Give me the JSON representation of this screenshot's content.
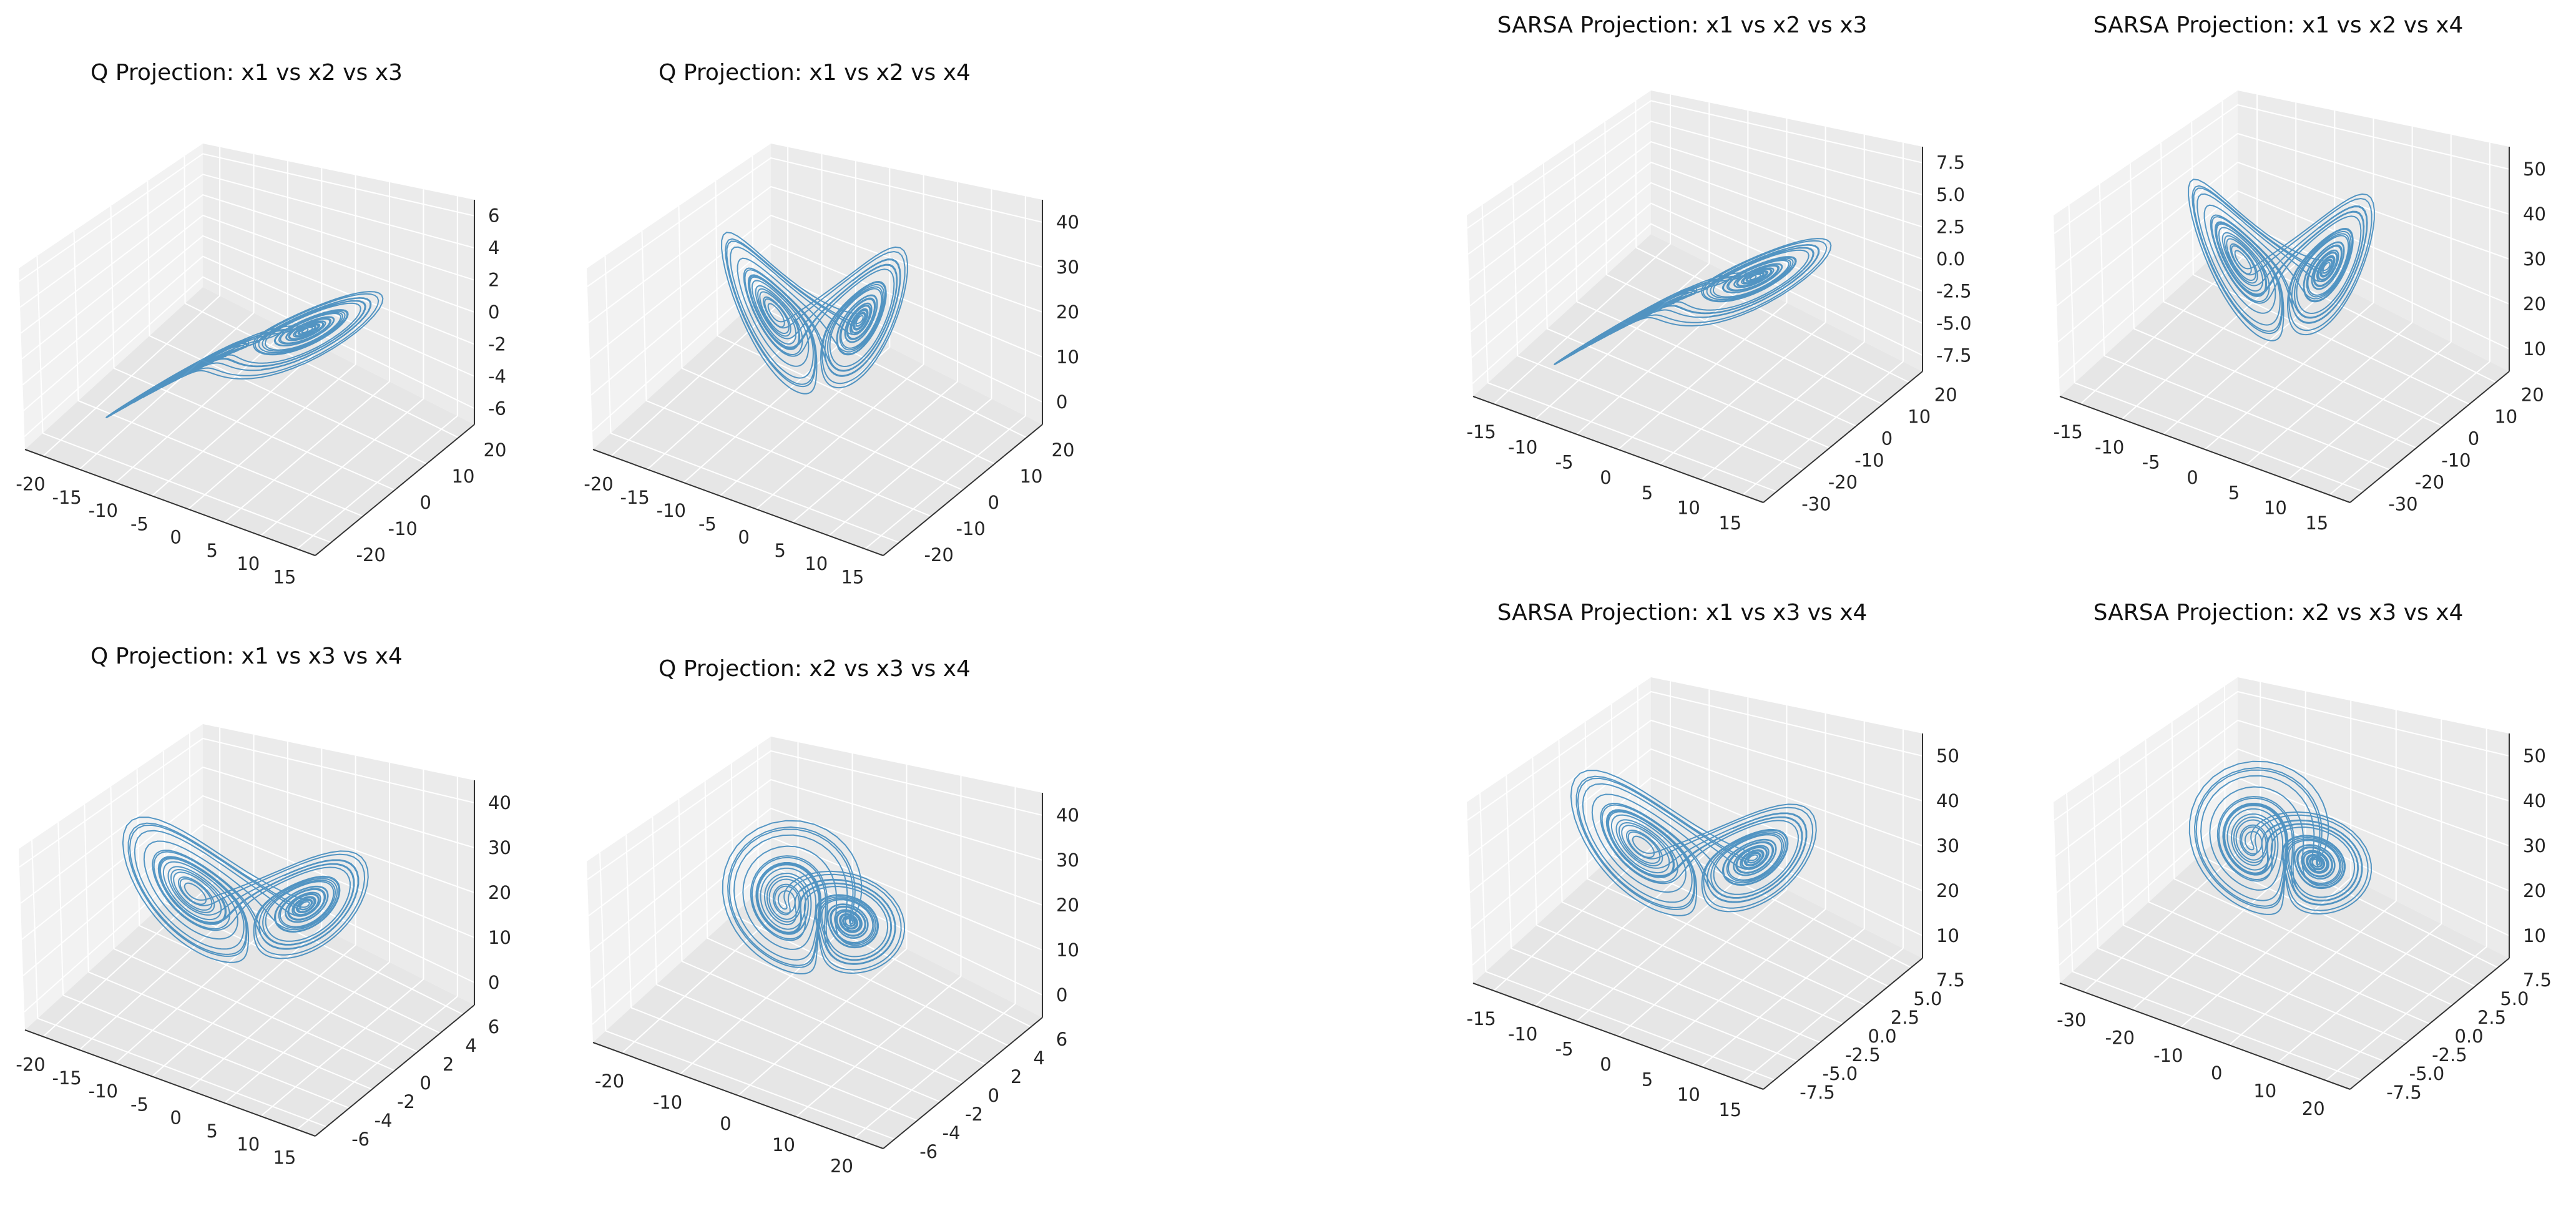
{
  "chart_data": [
    {
      "type": "line3d",
      "title": "Q Projection: x1 vs x2 vs x3",
      "series_color": "#1f77b4",
      "xaxis": {
        "ticks": [
          "-20",
          "-15",
          "-10",
          "-5",
          "0",
          "5",
          "10",
          "15"
        ]
      },
      "yaxis": {
        "ticks": [
          "-20",
          "-10",
          "0",
          "10",
          "20"
        ]
      },
      "zaxis": {
        "ticks": [
          "-6",
          "-4",
          "-2",
          "0",
          "2",
          "4",
          "6"
        ]
      },
      "zvars": [
        "x1",
        "x2",
        "x3"
      ]
    },
    {
      "type": "line3d",
      "title": "Q Projection: x1 vs x2 vs x4",
      "series_color": "#1f77b4",
      "xaxis": {
        "ticks": [
          "-20",
          "-15",
          "-10",
          "-5",
          "0",
          "5",
          "10",
          "15"
        ]
      },
      "yaxis": {
        "ticks": [
          "-20",
          "-10",
          "0",
          "10",
          "20"
        ]
      },
      "zaxis": {
        "ticks": [
          "0",
          "10",
          "20",
          "30",
          "40"
        ]
      },
      "zvars": [
        "x1",
        "x2",
        "x4"
      ]
    },
    {
      "type": "line3d",
      "title": "Q Projection: x1 vs x3 vs x4",
      "series_color": "#1f77b4",
      "xaxis": {
        "ticks": [
          "-20",
          "-15",
          "-10",
          "-5",
          "0",
          "5",
          "10",
          "15"
        ]
      },
      "yaxis": {
        "ticks": [
          "-6",
          "-4",
          "-2",
          "0",
          "2",
          "4",
          "6"
        ]
      },
      "zaxis": {
        "ticks": [
          "0",
          "10",
          "20",
          "30",
          "40"
        ]
      },
      "zvars": [
        "x1",
        "x3",
        "x4"
      ]
    },
    {
      "type": "line3d",
      "title": "Q Projection: x2 vs x3 vs x4",
      "series_color": "#1f77b4",
      "xaxis": {
        "ticks": [
          "-20",
          "-10",
          "0",
          "10",
          "20"
        ]
      },
      "yaxis": {
        "ticks": [
          "-6",
          "-4",
          "-2",
          "0",
          "2",
          "4",
          "6"
        ]
      },
      "zaxis": {
        "ticks": [
          "0",
          "10",
          "20",
          "30",
          "40"
        ]
      },
      "zvars": [
        "x2",
        "x3",
        "x4"
      ]
    },
    {
      "type": "line3d",
      "title": "SARSA Projection: x1 vs x2 vs x3",
      "series_color": "#1f77b4",
      "xaxis": {
        "ticks": [
          "-15",
          "-10",
          "-5",
          "0",
          "5",
          "10",
          "15"
        ]
      },
      "yaxis": {
        "ticks": [
          "-30",
          "-20",
          "-10",
          "0",
          "10",
          "20"
        ]
      },
      "zaxis": {
        "ticks": [
          "-7.5",
          "-5.0",
          "-2.5",
          "0.0",
          "2.5",
          "5.0",
          "7.5"
        ]
      },
      "zvars": [
        "x1",
        "x2",
        "x3"
      ]
    },
    {
      "type": "line3d",
      "title": "SARSA Projection: x1 vs x2 vs x4",
      "series_color": "#1f77b4",
      "xaxis": {
        "ticks": [
          "-15",
          "-10",
          "-5",
          "0",
          "5",
          "10",
          "15"
        ]
      },
      "yaxis": {
        "ticks": [
          "-30",
          "-20",
          "-10",
          "0",
          "10",
          "20"
        ]
      },
      "zaxis": {
        "ticks": [
          "10",
          "20",
          "30",
          "40",
          "50"
        ]
      },
      "zvars": [
        "x1",
        "x2",
        "x4"
      ]
    },
    {
      "type": "line3d",
      "title": "SARSA Projection: x1 vs x3 vs x4",
      "series_color": "#1f77b4",
      "xaxis": {
        "ticks": [
          "-15",
          "-10",
          "-5",
          "0",
          "5",
          "10",
          "15"
        ]
      },
      "yaxis": {
        "ticks": [
          "-7.5",
          "-5.0",
          "-2.5",
          "0.0",
          "2.5",
          "5.0",
          "7.5"
        ]
      },
      "zaxis": {
        "ticks": [
          "10",
          "20",
          "30",
          "40",
          "50"
        ]
      },
      "zvars": [
        "x1",
        "x3",
        "x4"
      ]
    },
    {
      "type": "line3d",
      "title": "SARSA Projection: x2 vs x3 vs x4",
      "series_color": "#1f77b4",
      "xaxis": {
        "ticks": [
          "-30",
          "-20",
          "-10",
          "0",
          "10",
          "20"
        ]
      },
      "yaxis": {
        "ticks": [
          "-7.5",
          "-5.0",
          "-2.5",
          "0.0",
          "2.5",
          "5.0",
          "7.5"
        ]
      },
      "zaxis": {
        "ticks": [
          "10",
          "20",
          "30",
          "40",
          "50"
        ]
      },
      "zvars": [
        "x2",
        "x3",
        "x4"
      ]
    }
  ]
}
